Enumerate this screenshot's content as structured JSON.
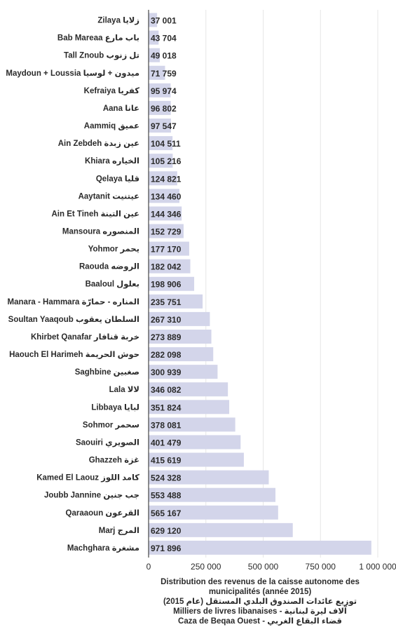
{
  "chart_data": {
    "type": "bar",
    "orientation": "horizontal",
    "categories": [
      "Zilaya زلايا",
      "Bab Mareaa باب مارع",
      "Tall Znoub تل زنوب",
      "Maydoun + Loussia ميدون + لوسيا",
      "Kefraiya كفريا",
      "Aana عانا",
      "Aammiq عميق",
      "Ain Zebdeh عين زبدة",
      "Khiara الخياره",
      "Qelaya قليا",
      "Aaytanit عيتنيت",
      "Ain Et Tineh عين التينة",
      "Mansoura المنصوره",
      "Yohmor يحمر",
      "Raouda الروضه",
      "Baaloul بعلول",
      "Manara - Hammara المناره - حمارّة",
      "Soultan Yaaqoub السلطان يعقوب",
      "Khirbet Qanafar خربة قنافار",
      "Haouch El Harimeh حوش الحريمة",
      "Saghbine صغبين",
      "Lala لالا",
      "Libbaya لبايا",
      "Sohmor سحمر",
      "Saouiri الصويري",
      "Ghazzeh غزة",
      "Kamed El Laouz كامد اللوز",
      "Joubb Jannine جب جنين",
      "Qaraaoun القرعون",
      "Marj المرج",
      "Machghara مشغرة"
    ],
    "values": [
      37001,
      43704,
      49018,
      71759,
      95974,
      96802,
      97547,
      104511,
      105216,
      124821,
      134460,
      144346,
      152729,
      177170,
      182042,
      198906,
      235751,
      267310,
      273889,
      282098,
      300939,
      346082,
      351824,
      378081,
      401479,
      415619,
      524328,
      553488,
      565167,
      629120,
      971896
    ],
    "value_labels": [
      "37 001",
      "43 704",
      "49 018",
      "71 759",
      "95 974",
      "96 802",
      "97 547",
      "104 511",
      "105 216",
      "124 821",
      "134 460",
      "144 346",
      "152 729",
      "177 170",
      "182 042",
      "198 906",
      "235 751",
      "267 310",
      "273 889",
      "282 098",
      "300 939",
      "346 082",
      "351 824",
      "378 081",
      "401 479",
      "415 619",
      "524 328",
      "553 488",
      "565 167",
      "629 120",
      "971 896"
    ],
    "xlim": [
      0,
      1000000
    ],
    "x_ticks": [
      0,
      250000,
      500000,
      750000,
      1000000
    ],
    "x_tick_labels": [
      "0",
      "250 000",
      "500 000",
      "750 000",
      "1 000 000"
    ],
    "grid": true,
    "legend": "none",
    "bar_color": "#d3d5ea",
    "caption_lines": [
      "Distribution des revenus de la caisse autonome des municipalités (année 2015)",
      "توزيع عائدات الصندوق البلدي المستقل (عام 2015)",
      "Milliers de livres libanaises  - آلاف ليرة لبنانية",
      "Caza de Beqaa Ouest - قضاء البقاع الغربي"
    ]
  }
}
